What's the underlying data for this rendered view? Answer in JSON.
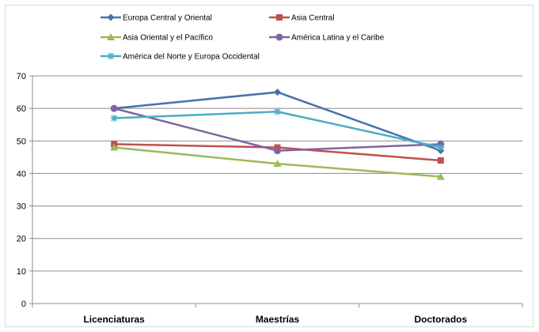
{
  "chart_data": {
    "type": "line",
    "title": "",
    "xlabel": "",
    "ylabel": "",
    "categories": [
      "Licenciaturas",
      "Maestrías",
      "Doctorados"
    ],
    "ylim": [
      0,
      70
    ],
    "yticks": [
      0,
      10,
      20,
      30,
      40,
      50,
      60,
      70
    ],
    "grid": true,
    "legend_position": "top",
    "series": [
      {
        "name": "Europa Central  y Oriental",
        "values": [
          60,
          65,
          47
        ],
        "color": "#4572a7",
        "marker": "diamond"
      },
      {
        "name": "Asia Central",
        "values": [
          49,
          48,
          44
        ],
        "color": "#c0504d",
        "marker": "square"
      },
      {
        "name": "Asia Oriental y el Pacífico",
        "values": [
          48,
          43,
          39
        ],
        "color": "#9bbb59",
        "marker": "triangle"
      },
      {
        "name": "América Latina y el Caribe",
        "values": [
          60,
          47,
          49
        ],
        "color": "#8064a2",
        "marker": "circle"
      },
      {
        "name": "América del Norte y Europa Occidental",
        "values": [
          57,
          59,
          48
        ],
        "color": "#4bacc6",
        "marker": "star"
      }
    ]
  }
}
